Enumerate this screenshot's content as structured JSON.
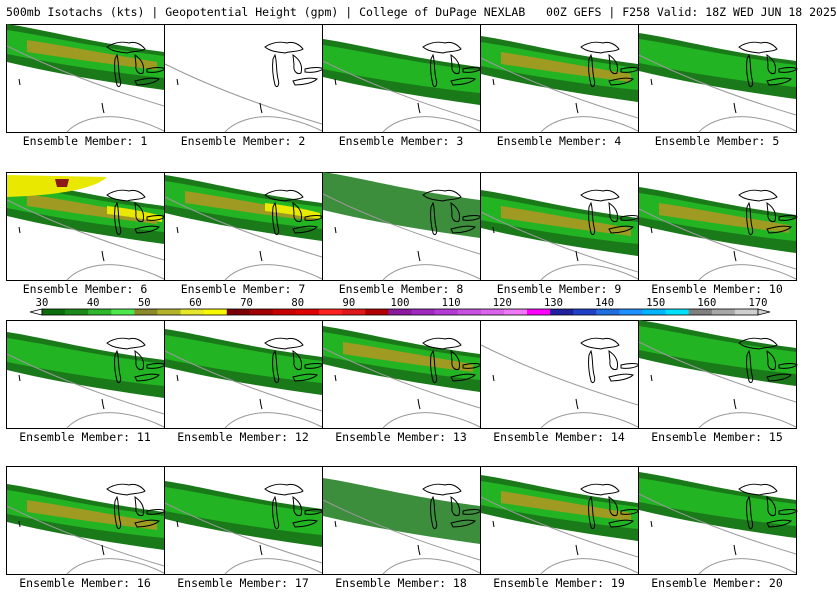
{
  "header": {
    "title": "500mb Isotachs (kts) | Geopotential Height (gpm) | College of DuPage NEXLAB   00Z GEFS | F258 Valid: 18Z WED JUN 18 2025"
  },
  "colors": {
    "k30": "#1a7a1a",
    "k40": "#22b422",
    "k50": "#7fd63a",
    "k60": "#9e9a22",
    "k70": "#e8e800",
    "k80": "#8b1a1a",
    "height_contour": "#999999",
    "coastline": "#000000"
  },
  "colorbar": {
    "labels": [
      "30",
      "40",
      "50",
      "60",
      "70",
      "80",
      "90",
      "100",
      "110",
      "120",
      "130",
      "140",
      "150",
      "160",
      "170"
    ],
    "colors": [
      "#0b6e0b",
      "#1a8a1a",
      "#2fb82f",
      "#4ee84e",
      "#8a8a2a",
      "#b4b428",
      "#e6e62a",
      "#f8f800",
      "#7a0000",
      "#a00000",
      "#c80000",
      "#e00000",
      "#ff2020",
      "#e01818",
      "#b00000",
      "#8a1aa0",
      "#a028c0",
      "#b43cd6",
      "#c850e0",
      "#dc64ec",
      "#f078f8",
      "#ff00ff",
      "#2020a0",
      "#2040c8",
      "#1f6fe0",
      "#1e90ff",
      "#00b4ff",
      "#00e0ff",
      "#808080",
      "#a8a8a8",
      "#cfcfcf"
    ]
  },
  "members": [
    {
      "label": "Ensemble Member: 1",
      "wind": 3
    },
    {
      "label": "Ensemble Member: 2",
      "wind": 0
    },
    {
      "label": "Ensemble Member: 3",
      "wind": 2
    },
    {
      "label": "Ensemble Member: 4",
      "wind": 3
    },
    {
      "label": "Ensemble Member: 5",
      "wind": 2
    },
    {
      "label": "Ensemble Member: 6",
      "wind": 5
    },
    {
      "label": "Ensemble Member: 7",
      "wind": 4
    },
    {
      "label": "Ensemble Member: 8",
      "wind": 1
    },
    {
      "label": "Ensemble Member: 9",
      "wind": 3
    },
    {
      "label": "Ensemble Member: 10",
      "wind": 3
    },
    {
      "label": "Ensemble Member: 11",
      "wind": 2
    },
    {
      "label": "Ensemble Member: 12",
      "wind": 2
    },
    {
      "label": "Ensemble Member: 13",
      "wind": 3
    },
    {
      "label": "Ensemble Member: 14",
      "wind": 0
    },
    {
      "label": "Ensemble Member: 15",
      "wind": 2
    },
    {
      "label": "Ensemble Member: 16",
      "wind": 3
    },
    {
      "label": "Ensemble Member: 17",
      "wind": 2
    },
    {
      "label": "Ensemble Member: 18",
      "wind": 1
    },
    {
      "label": "Ensemble Member: 19",
      "wind": 3
    },
    {
      "label": "Ensemble Member: 20",
      "wind": 2
    }
  ]
}
